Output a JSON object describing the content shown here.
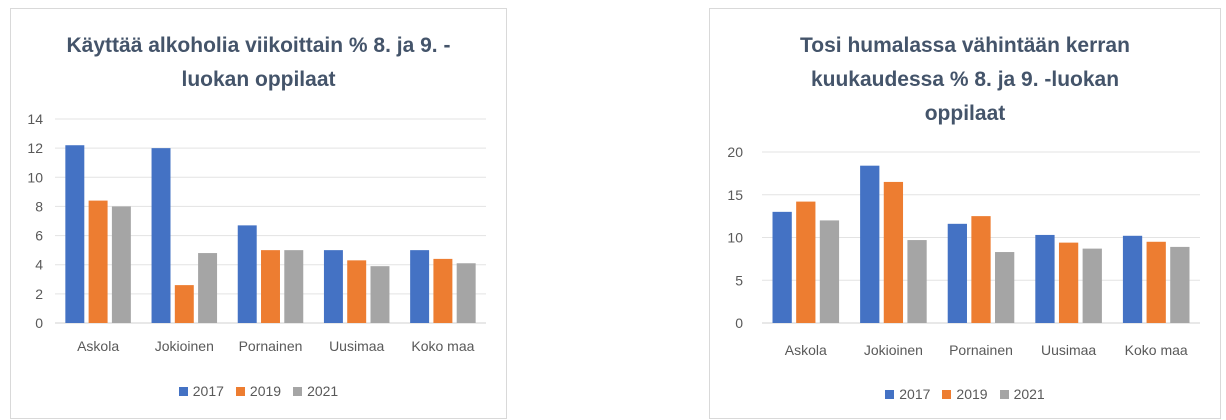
{
  "chart_data": [
    {
      "type": "bar",
      "title": "Käyttää alkoholia viikoittain %   8. ja 9. -\nluokan oppilaat",
      "categories": [
        "Askola",
        "Jokioinen",
        "Pornainen",
        "Uusimaa",
        "Koko maa"
      ],
      "series": [
        {
          "name": "2017",
          "color": "#4472c4",
          "values": [
            12.2,
            12.0,
            6.7,
            5.0,
            5.0
          ]
        },
        {
          "name": "2019",
          "color": "#ed7d31",
          "values": [
            8.4,
            2.6,
            5.0,
            4.3,
            4.4
          ]
        },
        {
          "name": "2021",
          "color": "#a5a5a5",
          "values": [
            8.0,
            4.8,
            5.0,
            3.9,
            4.1
          ]
        }
      ],
      "yticks": [
        "0",
        "2",
        "4",
        "6",
        "8",
        "10",
        "12",
        "14"
      ],
      "ylim": [
        0,
        14
      ],
      "grid": true,
      "legend": "bottom"
    },
    {
      "type": "bar",
      "title": "Tosi humalassa vähintään kerran\nkuukaudessa %   8. ja 9. -luokan\noppilaat",
      "categories": [
        "Askola",
        "Jokioinen",
        "Pornainen",
        "Uusimaa",
        "Koko maa"
      ],
      "series": [
        {
          "name": "2017",
          "color": "#4472c4",
          "values": [
            13.0,
            18.4,
            11.6,
            10.3,
            10.2
          ]
        },
        {
          "name": "2019",
          "color": "#ed7d31",
          "values": [
            14.2,
            16.5,
            12.5,
            9.4,
            9.5
          ]
        },
        {
          "name": "2021",
          "color": "#a5a5a5",
          "values": [
            12.0,
            9.7,
            8.3,
            8.7,
            8.9
          ]
        }
      ],
      "yticks": [
        "0",
        "5",
        "10",
        "15",
        "20"
      ],
      "ylim": [
        0,
        20
      ],
      "grid": true,
      "legend": "bottom"
    }
  ]
}
